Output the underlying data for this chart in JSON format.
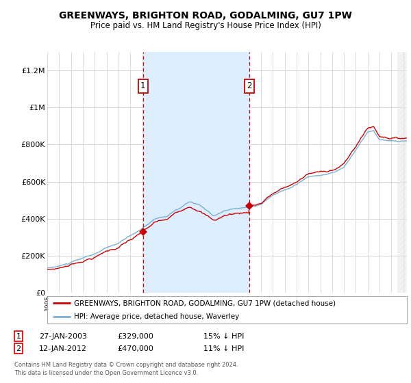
{
  "title": "GREENWAYS, BRIGHTON ROAD, GODALMING, GU7 1PW",
  "subtitle": "Price paid vs. HM Land Registry's House Price Index (HPI)",
  "ylim": [
    0,
    1300000
  ],
  "yticks": [
    0,
    200000,
    400000,
    600000,
    800000,
    1000000,
    1200000
  ],
  "ytick_labels": [
    "£0",
    "£200K",
    "£400K",
    "£600K",
    "£800K",
    "£1M",
    "£1.2M"
  ],
  "sale1_year": 2003.07,
  "sale1_price": 329000,
  "sale1_label": "1",
  "sale2_year": 2012.04,
  "sale2_price": 470000,
  "sale2_label": "2",
  "legend_line1": "GREENWAYS, BRIGHTON ROAD, GODALMING, GU7 1PW (detached house)",
  "legend_line2": "HPI: Average price, detached house, Waverley",
  "table_row1_date": "27-JAN-2003",
  "table_row1_price": "£329,000",
  "table_row1_pct": "15% ↓ HPI",
  "table_row2_date": "12-JAN-2012",
  "table_row2_price": "£470,000",
  "table_row2_pct": "11% ↓ HPI",
  "footer_line1": "Contains HM Land Registry data © Crown copyright and database right 2024.",
  "footer_line2": "This data is licensed under the Open Government Licence v3.0.",
  "line_color_red": "#cc0000",
  "line_color_blue": "#7ab0d4",
  "shading_color": "#ddeeff",
  "grid_color": "#cccccc",
  "bg_color": "#ffffff",
  "box_edge_color": "#cc0000",
  "xstart": 1995,
  "xend": 2025.3
}
